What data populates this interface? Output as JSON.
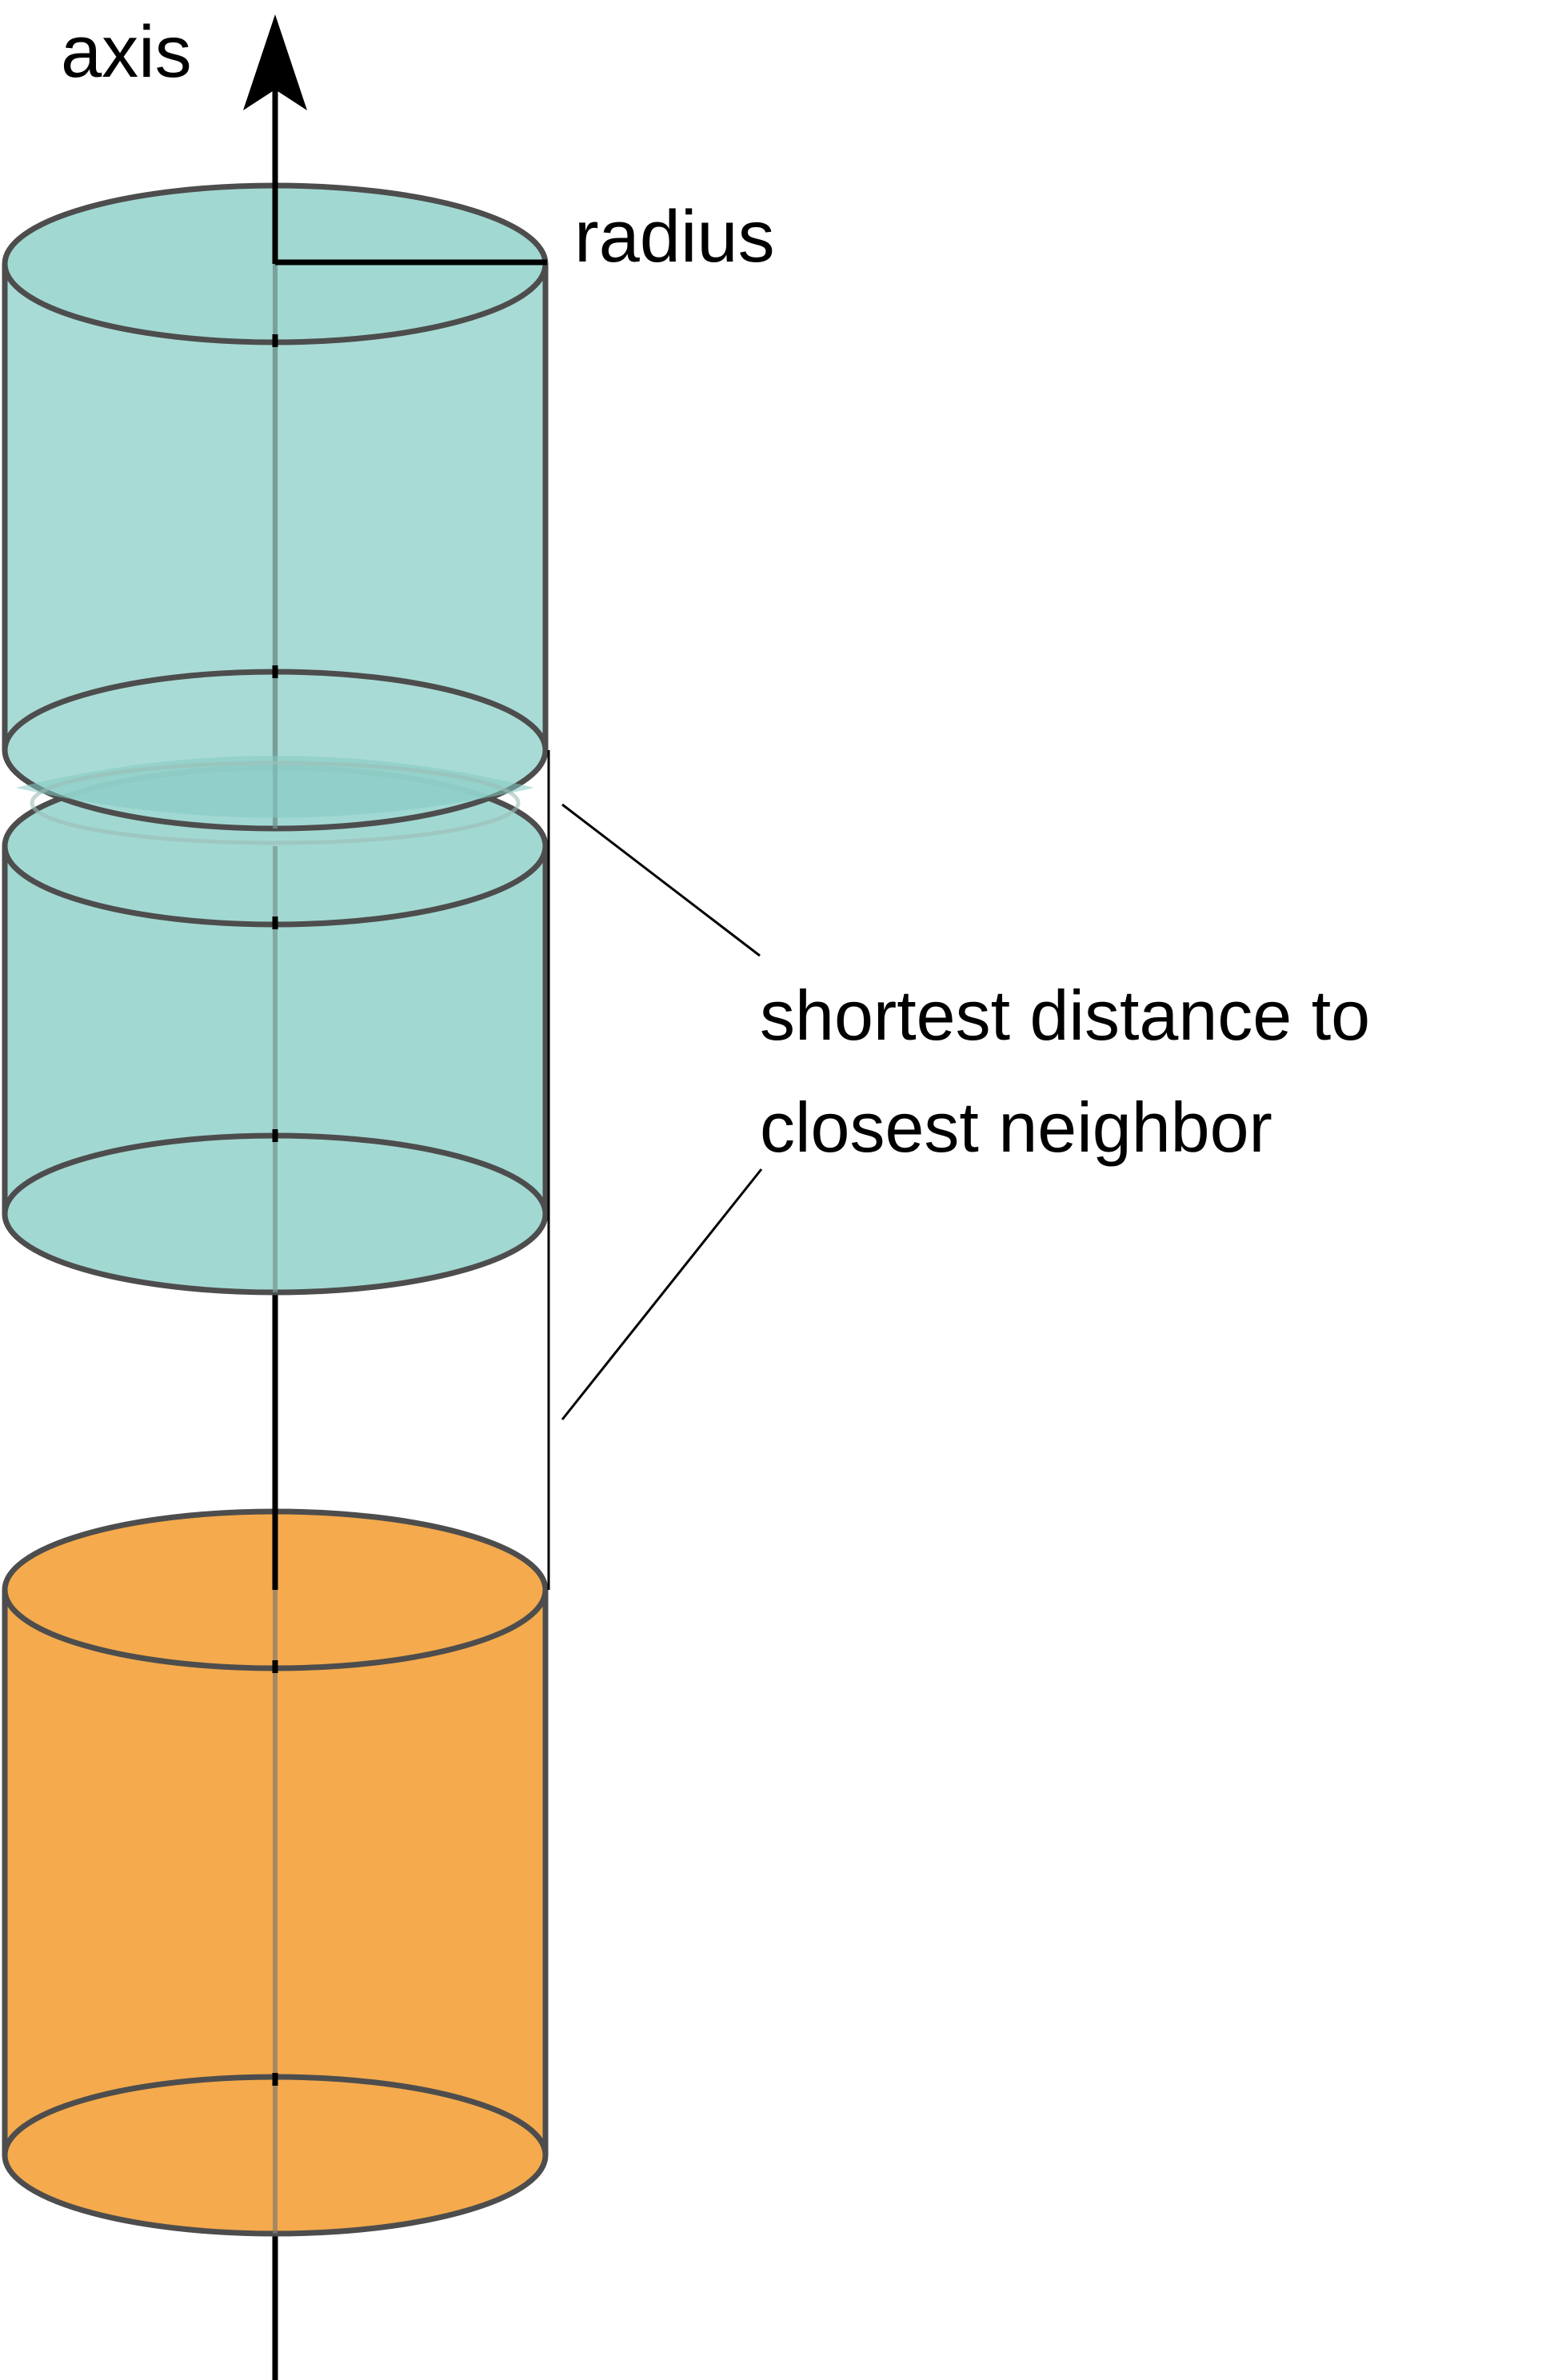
{
  "labels": {
    "axis": "axis",
    "radius": "radius",
    "distance_line1": "shortest distance to",
    "distance_line2": "closest neighbor"
  },
  "colors": {
    "teal_fill": "#a2d8d2",
    "teal_overlap": "#84cac2",
    "orange_fill": "#f4aa4d",
    "outline": "#4d4d4d",
    "axis_line": "#000000",
    "background": "#ffffff"
  },
  "icons": {
    "axis_arrowhead": "arrow-up-icon"
  },
  "cylinders": [
    {
      "name": "upper-teal-cylinder",
      "color": "teal"
    },
    {
      "name": "middle-teal-cylinder",
      "color": "teal"
    },
    {
      "name": "orange-neighbor-cylinder",
      "color": "orange"
    }
  ]
}
